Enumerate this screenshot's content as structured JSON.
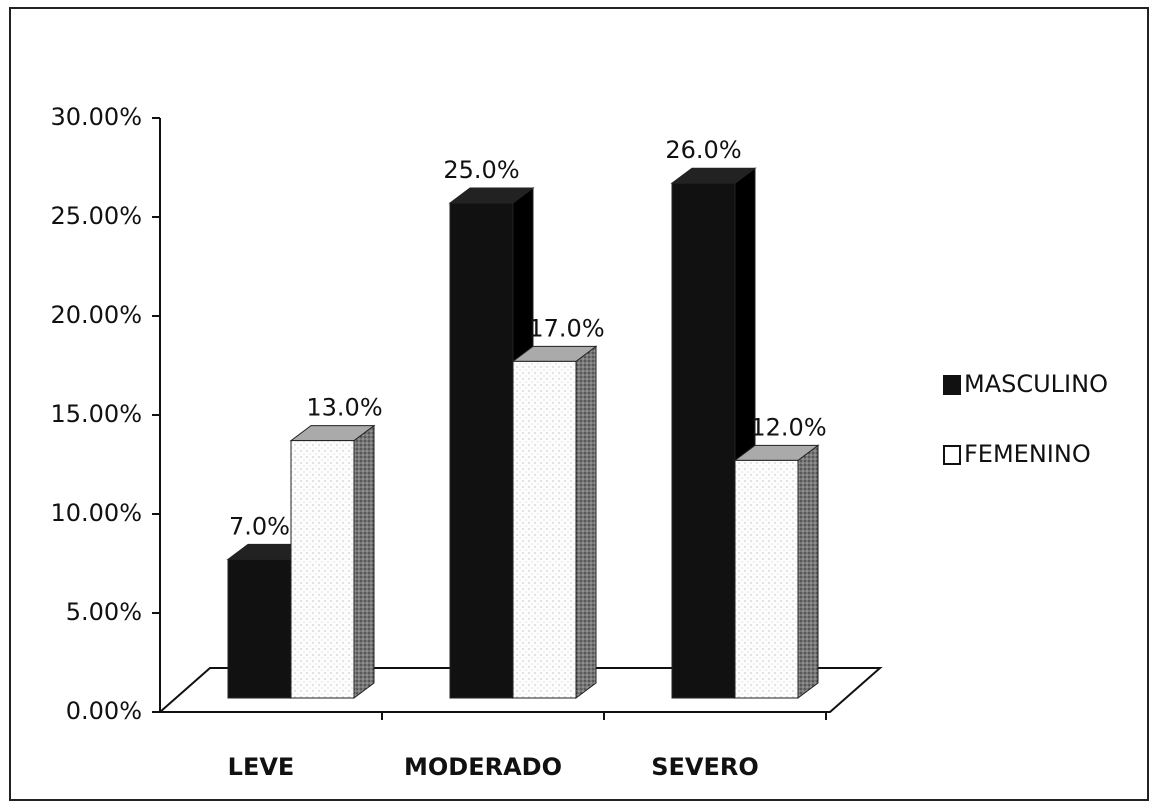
{
  "chart_data": {
    "type": "bar3d",
    "categories": [
      "LEVE",
      "MODERADO",
      "SEVERO"
    ],
    "series": [
      {
        "name": "MASCULINO",
        "color": "#111111",
        "values": [
          7,
          25,
          26
        ],
        "value_labels": [
          "7.0%",
          "25.0%",
          "26.0%"
        ]
      },
      {
        "name": "FEMENINO",
        "color": "#ffffff",
        "values": [
          13,
          17,
          12
        ],
        "value_labels": [
          "13.0%",
          "17.0%",
          "12.0%"
        ]
      }
    ],
    "ylim": [
      0,
      30
    ],
    "yticks": [
      {
        "value": 0,
        "label": "0.00%"
      },
      {
        "value": 5,
        "label": "5.00%"
      },
      {
        "value": 10,
        "label": "10.00%"
      },
      {
        "value": 15,
        "label": "15.00%"
      },
      {
        "value": 20,
        "label": "20.00%"
      },
      {
        "value": 25,
        "label": "25.00%"
      },
      {
        "value": 30,
        "label": "30.00%"
      }
    ],
    "legend": "right"
  }
}
